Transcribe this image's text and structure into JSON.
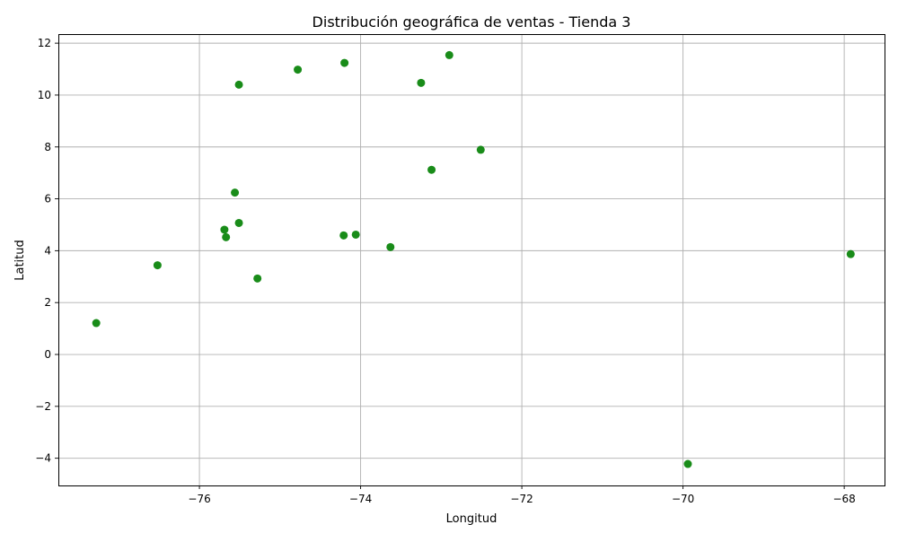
{
  "chart_data": {
    "type": "scatter",
    "title": "Distribución geográfica de ventas - Tienda 3",
    "xlabel": "Longitud",
    "ylabel": "Latitud",
    "xlim": [
      -77.75,
      -67.5
    ],
    "ylim": [
      -5.05,
      12.35
    ],
    "xticks": [
      -76,
      -74,
      -72,
      -70,
      -68
    ],
    "yticks": [
      -4,
      -2,
      0,
      2,
      4,
      6,
      8,
      10,
      12
    ],
    "xtick_labels": [
      "−76",
      "−74",
      "−72",
      "−70",
      "−68"
    ],
    "ytick_labels": [
      "−4",
      "−2",
      "0",
      "2",
      "4",
      "6",
      "8",
      "10",
      "12"
    ],
    "grid": true,
    "marker_color": "#008000",
    "points": [
      {
        "x": -77.28,
        "y": 1.21
      },
      {
        "x": -76.52,
        "y": 3.44
      },
      {
        "x": -75.69,
        "y": 4.81
      },
      {
        "x": -75.67,
        "y": 4.52
      },
      {
        "x": -75.56,
        "y": 6.24
      },
      {
        "x": -75.51,
        "y": 5.07
      },
      {
        "x": -75.51,
        "y": 10.4
      },
      {
        "x": -75.28,
        "y": 2.93
      },
      {
        "x": -74.78,
        "y": 10.98
      },
      {
        "x": -74.21,
        "y": 4.59
      },
      {
        "x": -74.2,
        "y": 11.24
      },
      {
        "x": -74.06,
        "y": 4.62
      },
      {
        "x": -73.63,
        "y": 4.14
      },
      {
        "x": -73.25,
        "y": 10.47
      },
      {
        "x": -73.12,
        "y": 7.12
      },
      {
        "x": -72.9,
        "y": 11.54
      },
      {
        "x": -72.51,
        "y": 7.89
      },
      {
        "x": -69.94,
        "y": -4.22
      },
      {
        "x": -67.92,
        "y": 3.87
      }
    ]
  }
}
